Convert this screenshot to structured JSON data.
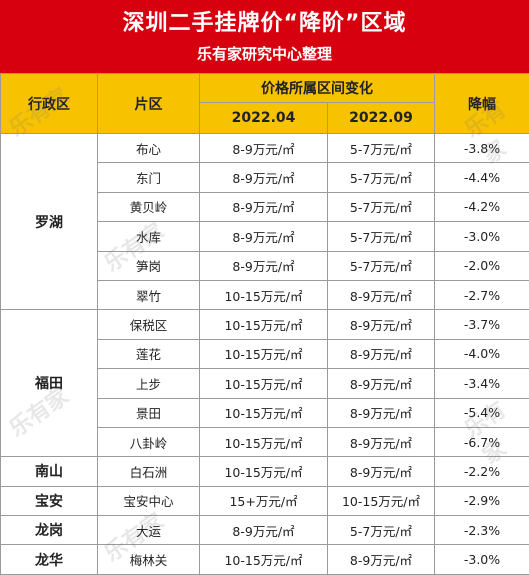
{
  "header": {
    "title": "深圳二手挂牌价“降阶”区域",
    "subtitle": "乐有家研究中心整理"
  },
  "columns": {
    "district": "行政区",
    "zone": "片区",
    "price_change": "价格所属区间变化",
    "period1": "2022.04",
    "period2": "2022.09",
    "decline": "降幅"
  },
  "groups": [
    {
      "district": "罗湖",
      "rows": [
        {
          "zone": "布心",
          "p1": "8-9万元/㎡",
          "p2": "5-7万元/㎡",
          "decline": "-3.8%"
        },
        {
          "zone": "东门",
          "p1": "8-9万元/㎡",
          "p2": "5-7万元/㎡",
          "decline": "-4.4%"
        },
        {
          "zone": "黄贝岭",
          "p1": "8-9万元/㎡",
          "p2": "5-7万元/㎡",
          "decline": "-4.2%"
        },
        {
          "zone": "水库",
          "p1": "8-9万元/㎡",
          "p2": "5-7万元/㎡",
          "decline": "-3.0%"
        },
        {
          "zone": "笋岗",
          "p1": "8-9万元/㎡",
          "p2": "5-7万元/㎡",
          "decline": "-2.0%"
        },
        {
          "zone": "翠竹",
          "p1": "10-15万元/㎡",
          "p2": "8-9万元/㎡",
          "decline": "-2.7%"
        }
      ]
    },
    {
      "district": "福田",
      "rows": [
        {
          "zone": "保税区",
          "p1": "10-15万元/㎡",
          "p2": "8-9万元/㎡",
          "decline": "-3.7%"
        },
        {
          "zone": "莲花",
          "p1": "10-15万元/㎡",
          "p2": "8-9万元/㎡",
          "decline": "-4.0%"
        },
        {
          "zone": "上步",
          "p1": "10-15万元/㎡",
          "p2": "8-9万元/㎡",
          "decline": "-3.4%"
        },
        {
          "zone": "景田",
          "p1": "10-15万元/㎡",
          "p2": "8-9万元/㎡",
          "decline": "-5.4%"
        },
        {
          "zone": "八卦岭",
          "p1": "10-15万元/㎡",
          "p2": "8-9万元/㎡",
          "decline": "-6.7%"
        }
      ]
    },
    {
      "district": "南山",
      "rows": [
        {
          "zone": "白石洲",
          "p1": "10-15万元/㎡",
          "p2": "8-9万元/㎡",
          "decline": "-2.2%"
        }
      ]
    },
    {
      "district": "宝安",
      "rows": [
        {
          "zone": "宝安中心",
          "p1": "15+万元/㎡",
          "p2": "10-15万元/㎡",
          "decline": "-2.9%"
        }
      ]
    },
    {
      "district": "龙岗",
      "rows": [
        {
          "zone": "大运",
          "p1": "8-9万元/㎡",
          "p2": "5-7万元/㎡",
          "decline": "-2.3%"
        }
      ]
    },
    {
      "district": "龙华",
      "rows": [
        {
          "zone": "梅林关",
          "p1": "10-15万元/㎡",
          "p2": "8-9万元/㎡",
          "decline": "-3.0%"
        }
      ]
    }
  ],
  "watermark": "乐有家"
}
